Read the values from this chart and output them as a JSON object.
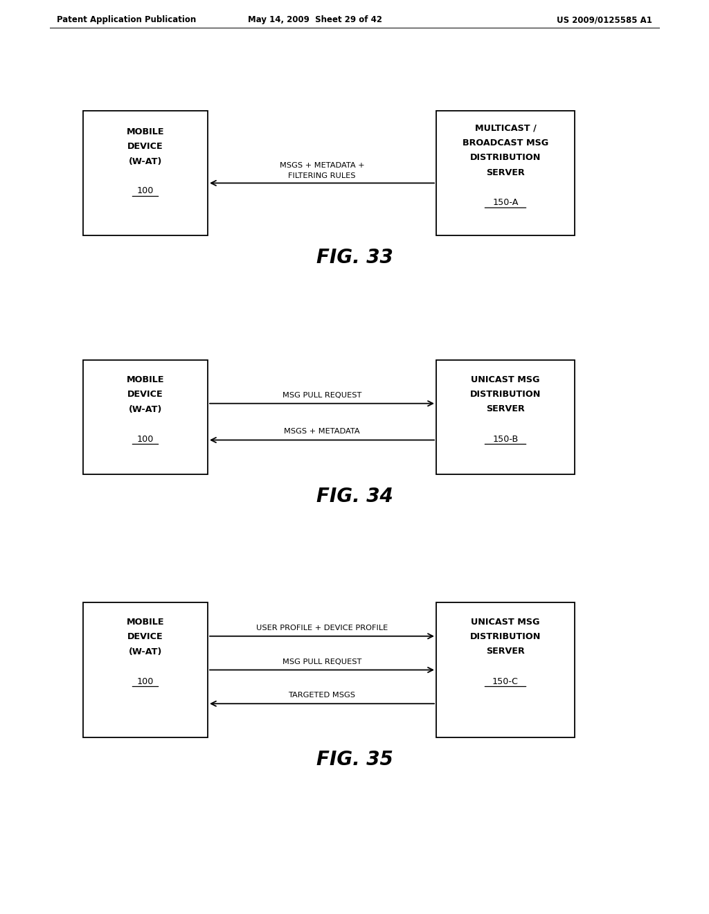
{
  "bg_color": "#ffffff",
  "header_left": "Patent Application Publication",
  "header_mid": "May 14, 2009  Sheet 29 of 42",
  "header_right": "US 2009/0125585 A1",
  "fig33": {
    "label": "FIG. 33",
    "left_lines": [
      "MOBILE",
      "DEVICE",
      "(W-AT)",
      "",
      "100"
    ],
    "right_lines": [
      "MULTICAST /",
      "BROADCAST MSG",
      "DISTRIBUTION",
      "SERVER",
      "",
      "150-A"
    ],
    "arrow_label_1": "MSGS + METADATA +",
    "arrow_label_2": "FILTERING RULES"
  },
  "fig34": {
    "label": "FIG. 34",
    "left_lines": [
      "MOBILE",
      "DEVICE",
      "(W-AT)",
      "",
      "100"
    ],
    "right_lines": [
      "UNICAST MSG",
      "DISTRIBUTION",
      "SERVER",
      "",
      "150-B"
    ],
    "arrow_up_label": "MSG PULL REQUEST",
    "arrow_dn_label": "MSGS + METADATA"
  },
  "fig35": {
    "label": "FIG. 35",
    "left_lines": [
      "MOBILE",
      "DEVICE",
      "(W-AT)",
      "",
      "100"
    ],
    "right_lines": [
      "UNICAST MSG",
      "DISTRIBUTION",
      "SERVER",
      "",
      "150-C"
    ],
    "arrow1_label": "USER PROFILE + DEVICE PROFILE",
    "arrow2_label": "MSG PULL REQUEST",
    "arrow3_label": "TARGETED MSGS"
  }
}
